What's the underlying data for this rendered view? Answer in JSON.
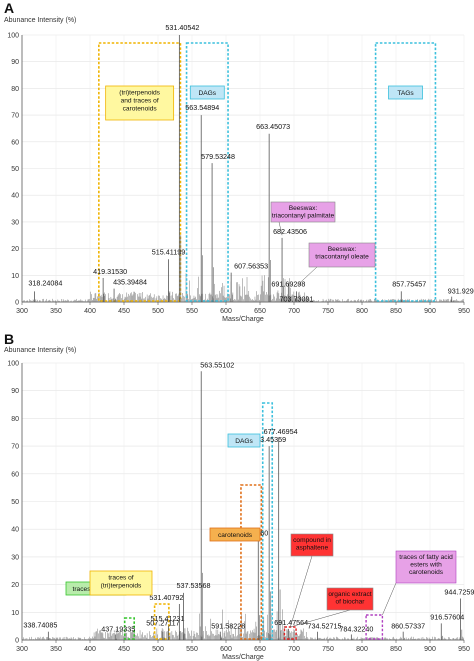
{
  "chart_data": [
    {
      "type": "line",
      "panel": "A",
      "ylabel": "Abunance Intensity (%)",
      "xlabel": "Mass/Charge",
      "xlim": [
        300,
        950
      ],
      "ylim": [
        0,
        100
      ],
      "xticks": [
        300,
        350,
        400,
        450,
        500,
        550,
        600,
        650,
        700,
        750,
        800,
        850,
        900,
        950
      ],
      "yticks": [
        0,
        10,
        20,
        30,
        40,
        50,
        60,
        70,
        80,
        90,
        100
      ],
      "peaks": [
        {
          "mz": 318.24084,
          "rel": 4,
          "label": "318.24084"
        },
        {
          "mz": 419.3153,
          "rel": 9,
          "label": "419.31530"
        },
        {
          "mz": 435.39484,
          "rel": 5,
          "label": "435.39484"
        },
        {
          "mz": 515.41199,
          "rel": 16,
          "label": "515.41199"
        },
        {
          "mz": 531.40542,
          "rel": 100,
          "label": "531.40542"
        },
        {
          "mz": 563.54894,
          "rel": 70,
          "label": "563.54894"
        },
        {
          "mz": 579.53248,
          "rel": 52,
          "label": "579.53248"
        },
        {
          "mz": 607.56353,
          "rel": 11,
          "label": "607.56353"
        },
        {
          "mz": 663.45073,
          "rel": 63,
          "label": "663.45073"
        },
        {
          "mz": 682.43506,
          "rel": 24,
          "label": "682.43506"
        },
        {
          "mz": 691.69298,
          "rel": 7,
          "label": "691.69298"
        },
        {
          "mz": 703.73091,
          "rel": 4,
          "label": "703.73091"
        },
        {
          "mz": 857.75457,
          "rel": 4,
          "label": "857.75457"
        },
        {
          "mz": 931.92909,
          "rel": 2,
          "label": "931.92909"
        }
      ],
      "regions": [
        {
          "label": "(tri)terpenoids and traces of carotenoids",
          "mz": [
            413,
            533
          ],
          "color": "#f0b400",
          "fill": "#fff8a0"
        },
        {
          "label": "DAGs",
          "mz": [
            542,
            603
          ],
          "color": "#3cc0dd",
          "fill": "#bfe6f6"
        },
        {
          "label": "TAGs",
          "mz": [
            820,
            908
          ],
          "color": "#3cc0dd",
          "fill": "#bfe6f6"
        }
      ],
      "annotations": [
        {
          "label": "Beeswax: triacontanyl palmitate",
          "target_mz": 682.43506,
          "fill": "#e7a1e7"
        },
        {
          "label": "Beeswax: triacontanyl oleate",
          "target_mz": 703.73091,
          "fill": "#e7a1e7"
        }
      ]
    },
    {
      "type": "line",
      "panel": "B",
      "ylabel": "Abunance Intensity (%)",
      "xlabel": "Mass/Charge",
      "xlim": [
        300,
        950
      ],
      "ylim": [
        0,
        100
      ],
      "xticks": [
        300,
        350,
        400,
        450,
        500,
        550,
        600,
        650,
        700,
        750,
        800,
        850,
        900,
        950
      ],
      "yticks": [
        0,
        10,
        20,
        30,
        40,
        50,
        60,
        70,
        80,
        90,
        100
      ],
      "peaks": [
        {
          "mz": 338.74085,
          "rel": 3,
          "label": "338.74085"
        },
        {
          "mz": 437.19335,
          "rel": 2,
          "label": "437.19335"
        },
        {
          "mz": 507.27117,
          "rel": 3,
          "label": "507.27117"
        },
        {
          "mz": 515.41231,
          "rel": 5,
          "label": "515.41231"
        },
        {
          "mz": 531.40792,
          "rel": 13,
          "label": "531.40792"
        },
        {
          "mz": 537.53568,
          "rel": 17,
          "label": "537.53568"
        },
        {
          "mz": 563.55102,
          "rel": 97,
          "label": "563.55102"
        },
        {
          "mz": 591.58228,
          "rel": 3,
          "label": "591.58228"
        },
        {
          "mz": 647.4586,
          "rel": 36,
          "label": "647.45860"
        },
        {
          "mz": 663.45359,
          "rel": 70,
          "label": "663.45359"
        },
        {
          "mz": 677.46954,
          "rel": 73,
          "label": "677.46954"
        },
        {
          "mz": 691.47564,
          "rel": 4,
          "label": "691.47564"
        },
        {
          "mz": 734.52715,
          "rel": 3,
          "label": "734.52715"
        },
        {
          "mz": 784.3224,
          "rel": 2,
          "label": "784.32240"
        },
        {
          "mz": 860.57337,
          "rel": 3,
          "label": "860.57337"
        },
        {
          "mz": 916.57604,
          "rel": 6,
          "label": "916.57604"
        },
        {
          "mz": 944.7259,
          "rel": 15,
          "label": "944.72590"
        }
      ],
      "regions": [
        {
          "label": "traces of sugars",
          "mz": [
            451,
            465
          ],
          "color": "#37c52e",
          "fill": "#b8ecab"
        },
        {
          "label": "traces of (tri)terpenoids",
          "mz": [
            495,
            516
          ],
          "color": "#f0b400",
          "fill": "#fff8a0"
        },
        {
          "label": "DAGs",
          "mz": [
            654,
            668
          ],
          "color": "#3cc0dd",
          "fill": "#bfe6f6"
        },
        {
          "label": "carotenoids",
          "mz": [
            622,
            652
          ],
          "color": "#e0701a",
          "fill": "#f5b04e"
        }
      ],
      "annotations": [
        {
          "label": "compound in asphaltene",
          "box_mz": [
            686,
            703
          ],
          "fill": "#ff3333"
        },
        {
          "label": "organic extract of biochar",
          "box_mz": [
            686,
            703
          ],
          "fill": "#ff3333"
        },
        {
          "label": "traces of fatty acid esters with carotenoids",
          "box_mz": [
            806,
            830
          ],
          "fill": "#e7a1e7",
          "stroke": "#b040c0"
        }
      ]
    }
  ]
}
